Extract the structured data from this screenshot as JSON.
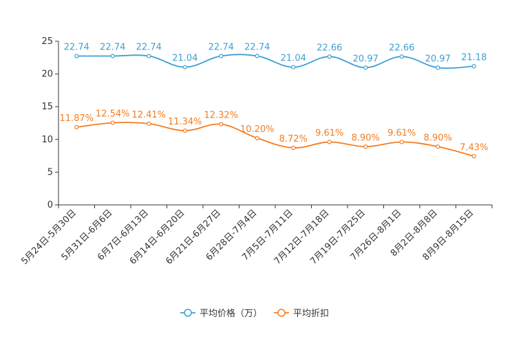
{
  "chart_data": {
    "type": "line",
    "categories": [
      "5月24日-5月30日",
      "5月31日-6月6日",
      "6月7日-6月13日",
      "6月14日-6月20日",
      "6月21日-6月27日",
      "6月28日-7月4日",
      "7月5日-7月11日",
      "7月12日-7月18日",
      "7月19日-7月25日",
      "7月26日-8月1日",
      "8月2日-8月8日",
      "8月9日-8月15日"
    ],
    "yticks": [
      "0",
      "5",
      "10",
      "15",
      "20",
      "25"
    ],
    "ylim": [
      0,
      25
    ],
    "series": [
      {
        "name": "平均价格（万）",
        "color": "#3ba0d4",
        "values": [
          22.74,
          22.74,
          22.74,
          21.04,
          22.74,
          22.74,
          21.04,
          22.66,
          20.97,
          22.66,
          20.97,
          21.18
        ],
        "labels": [
          "22.74",
          "22.74",
          "22.74",
          "21.04",
          "22.74",
          "22.74",
          "21.04",
          "22.66",
          "20.97",
          "22.66",
          "20.97",
          "21.18"
        ]
      },
      {
        "name": "平均折扣",
        "color": "#f57c1f",
        "values": [
          11.87,
          12.54,
          12.41,
          11.34,
          12.32,
          10.2,
          8.72,
          9.61,
          8.9,
          9.61,
          8.9,
          7.43
        ],
        "labels": [
          "11.87%",
          "12.54%",
          "12.41%",
          "11.34%",
          "12.32%",
          "10.20%",
          "8.72%",
          "9.61%",
          "8.90%",
          "9.61%",
          "8.90%",
          "7.43%"
        ]
      }
    ],
    "legend": {
      "position": "bottom-center"
    }
  }
}
